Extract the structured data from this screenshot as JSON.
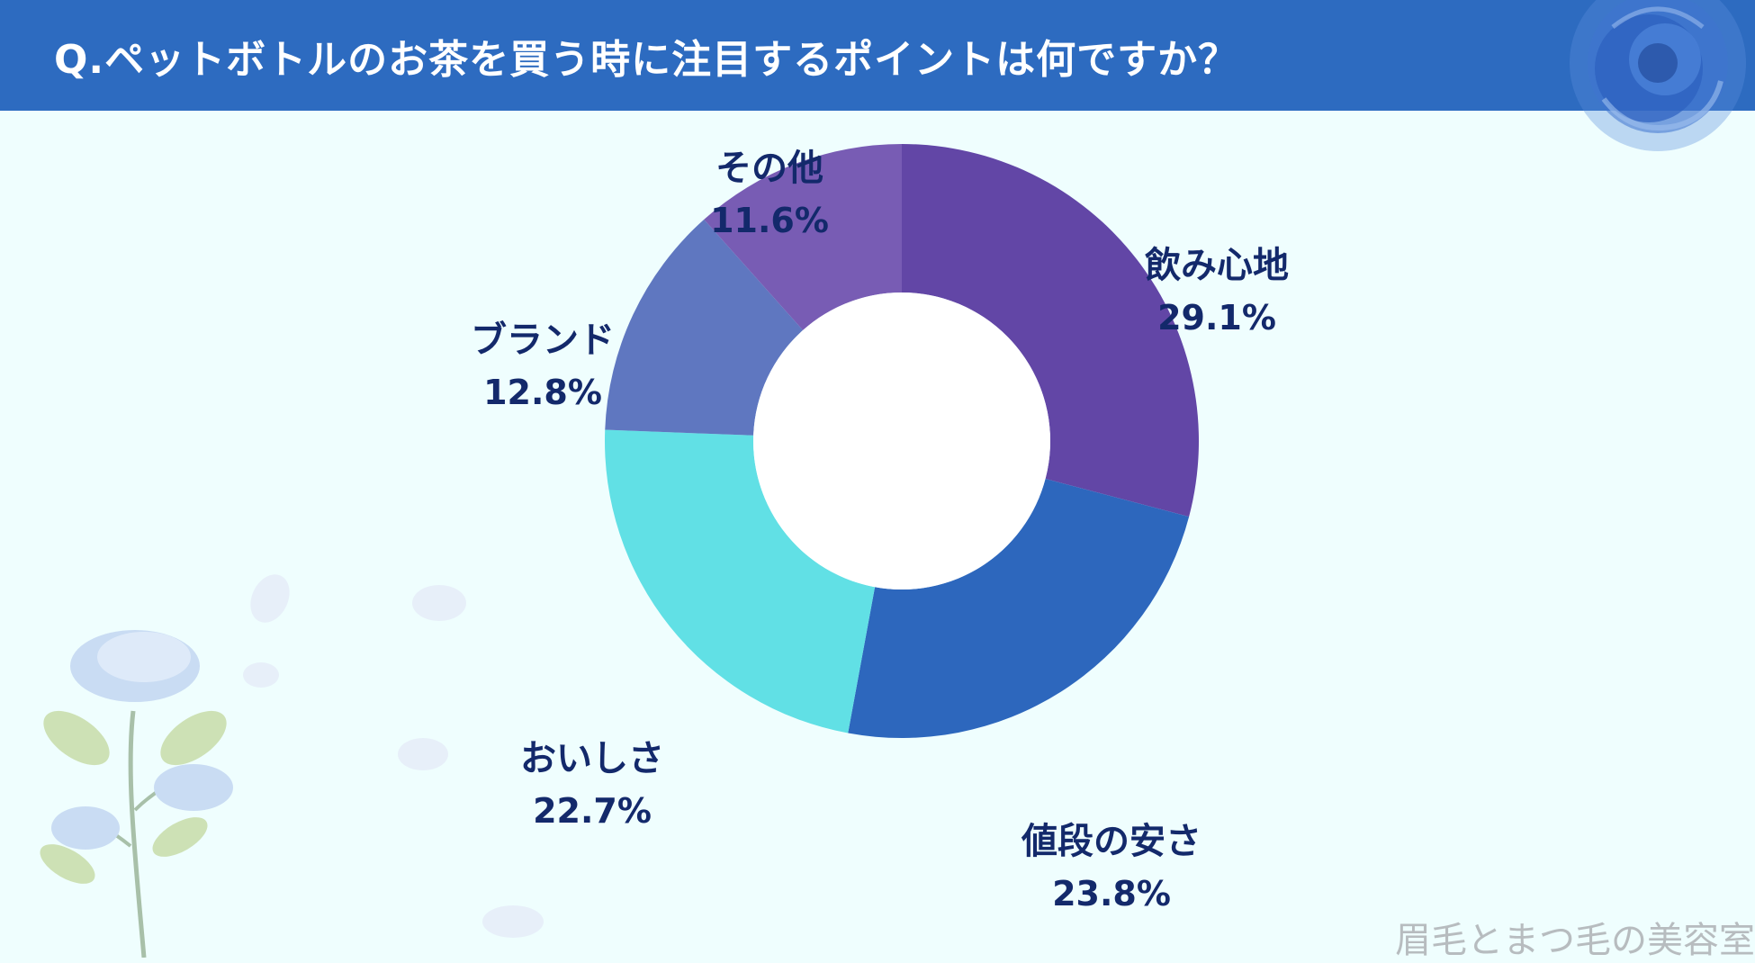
{
  "header": {
    "title": "Q.ペットボトルのお茶を買う時に注目するポイントは何ですか？"
  },
  "chart_data": {
    "type": "pie",
    "title": "Q.ペットボトルのお茶を買う時に注目するポイントは何ですか？",
    "donut": true,
    "start": "12 o'clock, clockwise",
    "slices": [
      {
        "label": "飲み心地",
        "value": 29.1,
        "display": "29.1%",
        "color": "#6246a6"
      },
      {
        "label": "値段の安さ",
        "value": 23.8,
        "display": "23.8%",
        "color": "#2d67bd"
      },
      {
        "label": "おいしさ",
        "value": 22.7,
        "display": "22.7%",
        "color": "#61e0e5"
      },
      {
        "label": "ブランド",
        "value": 12.8,
        "display": "12.8%",
        "color": "#5f77c0"
      },
      {
        "label": "その他",
        "value": 11.6,
        "display": "11.6%",
        "color": "#785cb4"
      }
    ]
  },
  "watermark": "眉毛とまつ毛の美容室",
  "decorations": {
    "top_right": "blue-rose-icon",
    "bottom_left": "blue-rose-branch-icon"
  }
}
